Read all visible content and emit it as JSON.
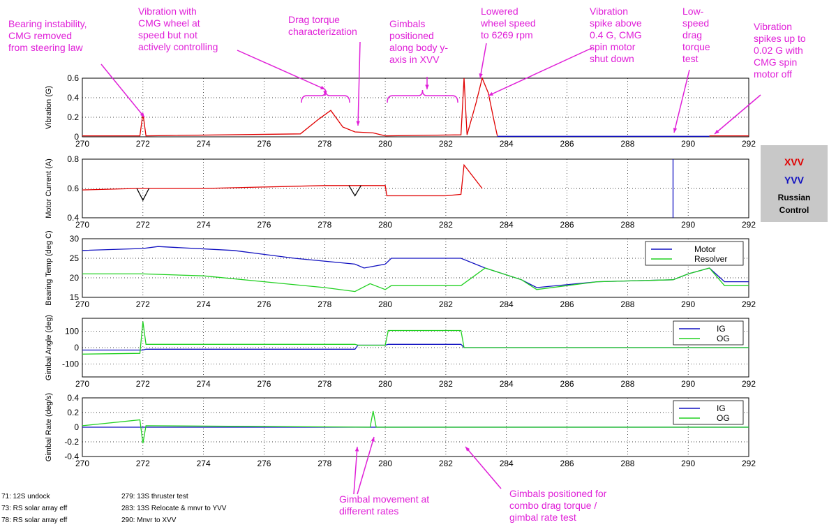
{
  "annotations": [
    {
      "lines": [
        "Bearing instability,",
        "CMG removed",
        "from steering law"
      ]
    },
    {
      "lines": [
        "Vibration with",
        "CMG wheel at",
        "speed but not",
        "actively controlling"
      ]
    },
    {
      "lines": [
        "Drag torque",
        "characterization"
      ]
    },
    {
      "lines": [
        "Gimbals",
        "positioned",
        "along body y-",
        "axis in XVV"
      ]
    },
    {
      "lines": [
        "Lowered",
        "wheel speed",
        "to 6269 rpm"
      ]
    },
    {
      "lines": [
        "Vibration",
        "spike above",
        "0.4 G, CMG",
        "spin motor",
        "shut down"
      ]
    },
    {
      "lines": [
        "Low-",
        "speed",
        "drag",
        "torque",
        "test"
      ]
    },
    {
      "lines": [
        "Vibration",
        "spikes up to",
        "0.02 G with",
        "CMG spin",
        "motor off"
      ]
    },
    {
      "lines": [
        "Gimbal movement at",
        "different rates"
      ]
    },
    {
      "lines": [
        "Gimbals positioned for",
        "combo drag torque /",
        "gimbal rate test"
      ]
    }
  ],
  "control_legend": {
    "items": [
      {
        "label": "XVV",
        "color": "#e00000"
      },
      {
        "label": "YVV",
        "color": "#1010c0"
      },
      {
        "label": "Russian",
        "color": "#000000"
      },
      {
        "label": "Control",
        "color": "#000000"
      }
    ]
  },
  "footnotes": {
    "left": [
      "71:  12S undock",
      "73:  RS solar array eff",
      "78:  RS solar array eff"
    ],
    "right": [
      "279:  13S thruster test",
      "283:  13S Relocate & mnvr to YVV",
      "290:  Mnvr to XVV"
    ]
  },
  "colors": {
    "xvv": "#e00000",
    "yvv": "#1010c0",
    "russian": "#000000",
    "green": "#20d020",
    "annotation": "#e020d8"
  },
  "chart_data": [
    {
      "type": "line",
      "ylabel": "Vibration (G)",
      "xlim": [
        270,
        292
      ],
      "xticks": [
        270,
        272,
        274,
        276,
        278,
        280,
        282,
        284,
        286,
        288,
        290,
        292
      ],
      "ylim": [
        0,
        0.6
      ],
      "yticks": [
        "0",
        "0.2",
        "0.4",
        "0.6"
      ],
      "series": [
        {
          "color": "xvv",
          "x": [
            270,
            271.9,
            272,
            272.1,
            277.2,
            277.8,
            278.2,
            278.6,
            279.0,
            279.6,
            280.0,
            282.5,
            282.6,
            282.7,
            283.0,
            283.2,
            283.4,
            283.6,
            283.7
          ],
          "y": [
            0.01,
            0.01,
            0.24,
            0.01,
            0.03,
            0.18,
            0.27,
            0.1,
            0.05,
            0.04,
            0.01,
            0.02,
            0.6,
            0.02,
            0.35,
            0.6,
            0.45,
            0.15,
            0.01
          ]
        },
        {
          "color": "yvv",
          "x": [
            283.7,
            290.7
          ],
          "y": [
            0.005,
            0.005
          ]
        },
        {
          "color": "xvv",
          "x": [
            290.7,
            292
          ],
          "y": [
            0.01,
            0.01
          ]
        }
      ]
    },
    {
      "type": "line",
      "ylabel": "Motor Current (A)",
      "xlim": [
        270,
        292
      ],
      "xticks": [
        270,
        272,
        274,
        276,
        278,
        280,
        282,
        284,
        286,
        288,
        290,
        292
      ],
      "ylim": [
        0.4,
        0.8
      ],
      "yticks": [
        "0.4",
        "0.6",
        "0.8"
      ],
      "series": [
        {
          "color": "xvv",
          "x": [
            270,
            271.8,
            272.2,
            274,
            276,
            278,
            279.2,
            280,
            280.05,
            282,
            282.5,
            282.6,
            283.2
          ],
          "y": [
            0.59,
            0.6,
            0.6,
            0.6,
            0.61,
            0.62,
            0.62,
            0.62,
            0.55,
            0.55,
            0.56,
            0.76,
            0.6
          ]
        },
        {
          "color": "russian",
          "x": [
            271.8,
            272.0,
            272.2
          ],
          "y": [
            0.6,
            0.52,
            0.6
          ]
        },
        {
          "color": "russian",
          "x": [
            278.8,
            279.0,
            279.2
          ],
          "y": [
            0.62,
            0.55,
            0.62
          ]
        },
        {
          "color": "yvv",
          "x": [
            289.5,
            289.5
          ],
          "y": [
            0.4,
            0.8
          ]
        }
      ]
    },
    {
      "type": "line",
      "ylabel": "Bearing Temp (deg C)",
      "xlim": [
        270,
        292
      ],
      "xticks": [
        270,
        272,
        274,
        276,
        278,
        280,
        282,
        284,
        286,
        288,
        290,
        292
      ],
      "ylim": [
        15,
        30
      ],
      "yticks": [
        "15",
        "20",
        "25",
        "30"
      ],
      "legend": [
        "Motor",
        "Resolver"
      ],
      "series": [
        {
          "name": "Motor",
          "color": "yvv",
          "x": [
            270,
            272,
            272.5,
            275,
            277,
            279,
            279.3,
            280,
            280.2,
            282.5,
            283.3,
            284.5,
            285,
            287,
            289.5,
            290,
            290.7,
            291.2,
            292
          ],
          "y": [
            27,
            27.5,
            28,
            27,
            25,
            23.5,
            22.5,
            23.5,
            25,
            25,
            22.5,
            19.5,
            17.5,
            19,
            19.5,
            21,
            22.5,
            19,
            19
          ]
        },
        {
          "name": "Resolver",
          "color": "green",
          "x": [
            270,
            272,
            274,
            276,
            278,
            279,
            279.5,
            280,
            280.2,
            282.5,
            283.3,
            284.5,
            285,
            287,
            289.5,
            290,
            290.7,
            291.2,
            292
          ],
          "y": [
            21,
            21,
            20.5,
            19,
            17.5,
            16.5,
            18.5,
            17,
            18,
            18,
            22.5,
            19.5,
            17,
            19,
            19.5,
            21,
            22.5,
            18,
            18
          ]
        }
      ]
    },
    {
      "type": "line",
      "ylabel": "Gimbal Angle (deg)",
      "xlim": [
        270,
        292
      ],
      "xticks": [
        270,
        272,
        274,
        276,
        278,
        280,
        282,
        284,
        286,
        288,
        290,
        292
      ],
      "ylim": [
        -180,
        180
      ],
      "yticks": [
        "-100",
        "0",
        "100"
      ],
      "legend": [
        "IG",
        "OG"
      ],
      "series": [
        {
          "name": "IG",
          "color": "yvv",
          "x": [
            270,
            272,
            272.1,
            279,
            279.1,
            280,
            280.1,
            282.5,
            282.6,
            292
          ],
          "y": [
            -15,
            -15,
            -10,
            -10,
            15,
            15,
            20,
            20,
            0,
            0
          ]
        },
        {
          "name": "OG",
          "color": "green",
          "x": [
            270,
            271.9,
            272,
            272.1,
            279,
            279.1,
            280,
            280.1,
            282.5,
            282.6,
            292
          ],
          "y": [
            -40,
            -35,
            160,
            20,
            20,
            15,
            15,
            105,
            105,
            0,
            0
          ]
        }
      ]
    },
    {
      "type": "line",
      "ylabel": "Gimbal Rate (deg/s)",
      "xlim": [
        270,
        292
      ],
      "xticks": [
        270,
        272,
        274,
        276,
        278,
        280,
        282,
        284,
        286,
        288,
        290,
        292
      ],
      "ylim": [
        -0.4,
        0.4
      ],
      "yticks": [
        "-0.4",
        "-0.2",
        "0",
        "0.2",
        "0.4"
      ],
      "legend": [
        "IG",
        "OG"
      ],
      "series": [
        {
          "name": "IG",
          "color": "yvv",
          "x": [
            270,
            272,
            279,
            279.6,
            280,
            283.6,
            289.5,
            291,
            292
          ],
          "y": [
            0,
            0,
            0,
            0,
            0,
            0,
            0,
            0,
            0
          ]
        },
        {
          "name": "OG",
          "color": "green",
          "x": [
            270,
            271.9,
            272,
            272.1,
            279.5,
            279.6,
            279.7,
            283.6,
            292
          ],
          "y": [
            0.02,
            0.1,
            -0.22,
            0.02,
            0,
            0.22,
            0,
            0,
            0
          ]
        }
      ]
    }
  ]
}
